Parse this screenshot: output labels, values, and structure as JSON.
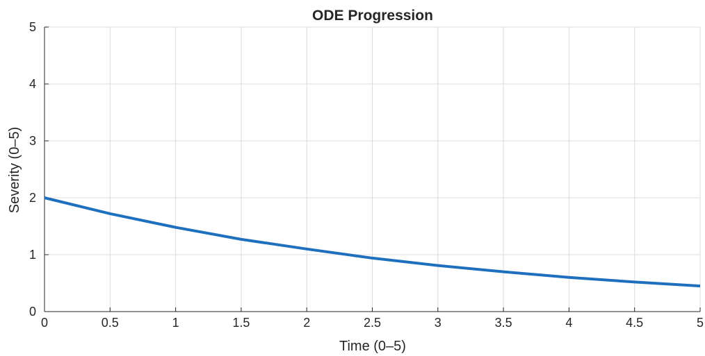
{
  "chart_data": {
    "type": "line",
    "title": "ODE Progression",
    "xlabel": "Time (0–5)",
    "ylabel": "Severity (0–5)",
    "xlim": [
      0,
      5
    ],
    "ylim": [
      0,
      5
    ],
    "xticks": [
      "0",
      "0.5",
      "1",
      "1.5",
      "2",
      "2.5",
      "3",
      "3.5",
      "4",
      "4.5",
      "5"
    ],
    "yticks": [
      "0",
      "1",
      "2",
      "3",
      "4",
      "5"
    ],
    "grid": true,
    "series": [
      {
        "color": "#1f6fbf",
        "x": [
          0,
          0.5,
          1,
          1.5,
          2,
          2.5,
          3,
          3.5,
          4,
          4.5,
          5
        ],
        "y": [
          2.0,
          1.72,
          1.48,
          1.27,
          1.1,
          0.94,
          0.81,
          0.7,
          0.6,
          0.52,
          0.45
        ]
      }
    ]
  }
}
